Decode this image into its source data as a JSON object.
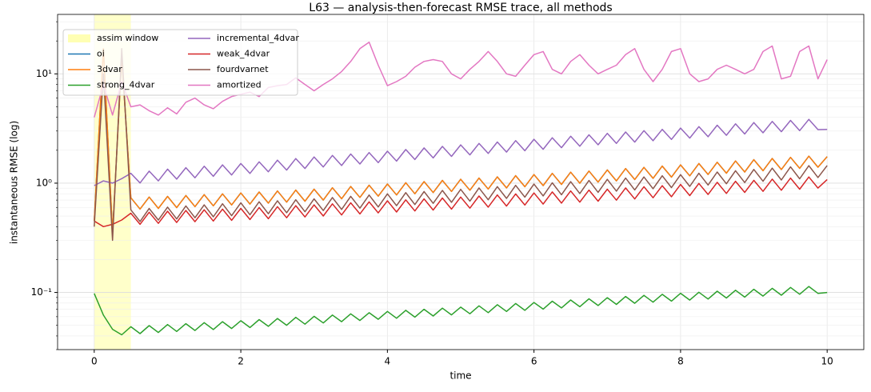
{
  "chart_data": {
    "type": "line",
    "title": "L63 — analysis-then-forecast RMSE trace, all methods",
    "xlabel": "time",
    "ylabel": "instantaneous RMSE (log)",
    "log_y": true,
    "grid": true,
    "legend": "upper left",
    "xlim": [
      -0.5,
      10.5
    ],
    "ylim": [
      0.03,
      35
    ],
    "xticks": [
      0,
      2,
      4,
      6,
      8,
      10
    ],
    "yticks": [
      {
        "value": 0.1,
        "label": "10⁻¹"
      },
      {
        "value": 1,
        "label": "10⁰"
      },
      {
        "value": 10,
        "label": "10¹"
      }
    ],
    "yminor": [
      0.03,
      0.04,
      0.05,
      0.06,
      0.07,
      0.08,
      0.09,
      0.2,
      0.3,
      0.4,
      0.5,
      0.6,
      0.7,
      0.8,
      0.9,
      2,
      3,
      4,
      5,
      6,
      7,
      8,
      9,
      20,
      30
    ],
    "assim_window": {
      "name": "assim window",
      "x0": 0,
      "x1": 0.5,
      "color": "#ffffb3"
    },
    "x": [
      0,
      0.125,
      0.25,
      0.375,
      0.5,
      0.625,
      0.75,
      0.875,
      1,
      1.125,
      1.25,
      1.375,
      1.5,
      1.625,
      1.75,
      1.875,
      2,
      2.125,
      2.25,
      2.375,
      2.5,
      2.625,
      2.75,
      2.875,
      3,
      3.125,
      3.25,
      3.375,
      3.5,
      3.625,
      3.75,
      3.875,
      4,
      4.125,
      4.25,
      4.375,
      4.5,
      4.625,
      4.75,
      4.875,
      5,
      5.125,
      5.25,
      5.375,
      5.5,
      5.625,
      5.75,
      5.875,
      6,
      6.125,
      6.25,
      6.375,
      6.5,
      6.625,
      6.75,
      6.875,
      7,
      7.125,
      7.25,
      7.375,
      7.5,
      7.625,
      7.75,
      7.875,
      8,
      8.125,
      8.25,
      8.375,
      8.5,
      8.625,
      8.75,
      8.875,
      9,
      9.125,
      9.25,
      9.375,
      9.5,
      9.625,
      9.75,
      9.875,
      10
    ],
    "series": [
      {
        "name": "oi",
        "color": "#1f77b4",
        "values": [
          0.45,
          17,
          0.35,
          14,
          0.735,
          0.58,
          0.746,
          0.588,
          0.757,
          0.598,
          0.771,
          0.61,
          0.785,
          0.62,
          0.799,
          0.632,
          0.814,
          0.644,
          0.83,
          0.657,
          0.848,
          0.67,
          0.864,
          0.684,
          0.881,
          0.7,
          0.907,
          0.72,
          0.932,
          0.74,
          0.958,
          0.76,
          0.983,
          0.78,
          1.009,
          0.8,
          1.034,
          0.82,
          1.06,
          0.84,
          1.085,
          0.861,
          1.113,
          0.883,
          1.141,
          0.905,
          1.17,
          0.927,
          1.198,
          0.95,
          1.229,
          0.974,
          1.26,
          0.999,
          1.291,
          1.023,
          1.322,
          1.05,
          1.359,
          1.079,
          1.396,
          1.107,
          1.433,
          1.136,
          1.469,
          1.167,
          1.512,
          1.2,
          1.554,
          1.234,
          1.597,
          1.266,
          1.639,
          1.3,
          1.681,
          1.333,
          1.723,
          1.366,
          1.766,
          1.399,
          1.75
        ]
      },
      {
        "name": "3dvar",
        "color": "#ff7f0e",
        "values": [
          0.45,
          17,
          0.35,
          14,
          0.735,
          0.58,
          0.746,
          0.588,
          0.757,
          0.598,
          0.771,
          0.61,
          0.785,
          0.62,
          0.799,
          0.632,
          0.814,
          0.644,
          0.83,
          0.657,
          0.848,
          0.67,
          0.864,
          0.684,
          0.881,
          0.7,
          0.907,
          0.72,
          0.932,
          0.74,
          0.958,
          0.76,
          0.983,
          0.78,
          1.009,
          0.8,
          1.034,
          0.82,
          1.06,
          0.84,
          1.085,
          0.861,
          1.113,
          0.883,
          1.141,
          0.905,
          1.17,
          0.927,
          1.198,
          0.95,
          1.229,
          0.974,
          1.26,
          0.999,
          1.291,
          1.023,
          1.322,
          1.05,
          1.359,
          1.079,
          1.396,
          1.107,
          1.433,
          1.136,
          1.469,
          1.167,
          1.512,
          1.2,
          1.554,
          1.234,
          1.597,
          1.266,
          1.639,
          1.3,
          1.681,
          1.333,
          1.723,
          1.366,
          1.766,
          1.399,
          1.75
        ]
      },
      {
        "name": "strong_4dvar",
        "color": "#2ca02c",
        "values": [
          0.098,
          0.062,
          0.046,
          0.041,
          0.0486,
          0.042,
          0.0497,
          0.043,
          0.0508,
          0.044,
          0.0518,
          0.0449,
          0.0529,
          0.0458,
          0.054,
          0.0468,
          0.0551,
          0.0478,
          0.0564,
          0.049,
          0.0578,
          0.0501,
          0.0592,
          0.0513,
          0.0605,
          0.0526,
          0.0621,
          0.054,
          0.0637,
          0.0554,
          0.0653,
          0.0568,
          0.067,
          0.0581,
          0.0686,
          0.0595,
          0.0702,
          0.0609,
          0.0718,
          0.0623,
          0.0734,
          0.0638,
          0.0754,
          0.0654,
          0.0772,
          0.067,
          0.0792,
          0.0686,
          0.081,
          0.0704,
          0.0832,
          0.0722,
          0.0853,
          0.0741,
          0.0875,
          0.0759,
          0.0896,
          0.0778,
          0.0918,
          0.0796,
          0.094,
          0.0815,
          0.0961,
          0.0833,
          0.0983,
          0.0852,
          0.1004,
          0.087,
          0.1026,
          0.0889,
          0.1048,
          0.0907,
          0.1069,
          0.0926,
          0.1091,
          0.0944,
          0.1112,
          0.0963,
          0.1134,
          0.0981,
          0.1
        ]
      },
      {
        "name": "incremental_4dvar",
        "color": "#9467bd",
        "values": [
          0.95,
          1.05,
          1.0,
          1.1,
          1.232,
          1.004,
          1.288,
          1.049,
          1.344,
          1.088,
          1.386,
          1.121,
          1.428,
          1.155,
          1.47,
          1.188,
          1.512,
          1.228,
          1.568,
          1.272,
          1.624,
          1.317,
          1.68,
          1.362,
          1.736,
          1.406,
          1.792,
          1.451,
          1.848,
          1.496,
          1.904,
          1.54,
          1.96,
          1.59,
          2.03,
          1.646,
          2.1,
          1.702,
          2.17,
          1.758,
          2.24,
          1.813,
          2.31,
          1.87,
          2.38,
          1.925,
          2.45,
          1.981,
          2.52,
          2.043,
          2.604,
          2.11,
          2.688,
          2.177,
          2.772,
          2.244,
          2.856,
          2.311,
          2.94,
          2.378,
          3.024,
          2.445,
          3.108,
          2.512,
          3.192,
          2.584,
          3.291,
          2.662,
          3.388,
          2.74,
          3.487,
          2.818,
          3.584,
          2.891,
          3.668,
          2.958,
          3.752,
          3.025,
          3.836,
          3.092,
          3.1
        ]
      },
      {
        "name": "weak_4dvar",
        "color": "#d62728",
        "values": [
          0.45,
          0.4,
          0.42,
          0.46,
          0.531,
          0.42,
          0.542,
          0.429,
          0.554,
          0.437,
          0.562,
          0.444,
          0.571,
          0.45,
          0.579,
          0.457,
          0.588,
          0.465,
          0.599,
          0.473,
          0.61,
          0.482,
          0.622,
          0.491,
          0.633,
          0.501,
          0.647,
          0.512,
          0.661,
          0.523,
          0.675,
          0.535,
          0.689,
          0.545,
          0.704,
          0.557,
          0.718,
          0.567,
          0.732,
          0.579,
          0.746,
          0.591,
          0.763,
          0.604,
          0.78,
          0.617,
          0.797,
          0.631,
          0.814,
          0.644,
          0.831,
          0.657,
          0.848,
          0.67,
          0.864,
          0.684,
          0.881,
          0.699,
          0.904,
          0.717,
          0.927,
          0.735,
          0.949,
          0.752,
          0.972,
          0.77,
          0.994,
          0.788,
          1.017,
          0.805,
          1.04,
          0.823,
          1.062,
          0.842,
          1.088,
          0.862,
          1.113,
          0.881,
          1.139,
          0.902,
          1.08
        ]
      },
      {
        "name": "fourdvarnet",
        "color": "#8c564b",
        "values": [
          0.4,
          10,
          0.3,
          17,
          0.57,
          0.446,
          0.587,
          0.459,
          0.604,
          0.47,
          0.619,
          0.482,
          0.633,
          0.492,
          0.648,
          0.504,
          0.661,
          0.514,
          0.676,
          0.525,
          0.69,
          0.536,
          0.705,
          0.547,
          0.718,
          0.561,
          0.739,
          0.575,
          0.758,
          0.591,
          0.779,
          0.606,
          0.798,
          0.622,
          0.819,
          0.637,
          0.838,
          0.653,
          0.858,
          0.668,
          0.878,
          0.685,
          0.904,
          0.705,
          0.929,
          0.725,
          0.955,
          0.745,
          0.98,
          0.764,
          1.007,
          0.784,
          1.032,
          0.804,
          1.058,
          0.824,
          1.083,
          0.845,
          1.112,
          0.867,
          1.14,
          0.889,
          1.169,
          0.911,
          1.197,
          0.934,
          1.231,
          0.961,
          1.265,
          0.987,
          1.3,
          1.013,
          1.334,
          1.04,
          1.371,
          1.069,
          1.408,
          1.097,
          1.446,
          1.126,
          1.45
        ]
      },
      {
        "name": "amortized",
        "color": "#e377c2",
        "values": [
          4.0,
          8,
          4.2,
          8.5,
          5.0,
          5.2,
          4.6,
          4.2,
          4.9,
          4.3,
          5.5,
          6.0,
          5.2,
          4.8,
          5.6,
          6.2,
          6.5,
          6.8,
          6.2,
          7.5,
          7.8,
          8.0,
          9.2,
          8.0,
          7.0,
          8.0,
          9.0,
          10.5,
          13,
          17,
          19.5,
          12,
          7.8,
          8.5,
          9.5,
          11.5,
          13,
          13.5,
          13,
          10,
          9,
          11,
          13,
          16,
          13,
          10,
          9.5,
          12,
          15,
          16,
          11,
          10,
          13,
          15,
          12,
          10,
          11,
          12,
          15,
          17,
          11,
          8.5,
          11,
          16,
          17,
          10,
          8.5,
          9,
          11,
          12,
          11,
          10,
          11,
          16,
          18,
          9,
          9.5,
          16,
          18,
          9,
          13.5
        ]
      }
    ]
  }
}
